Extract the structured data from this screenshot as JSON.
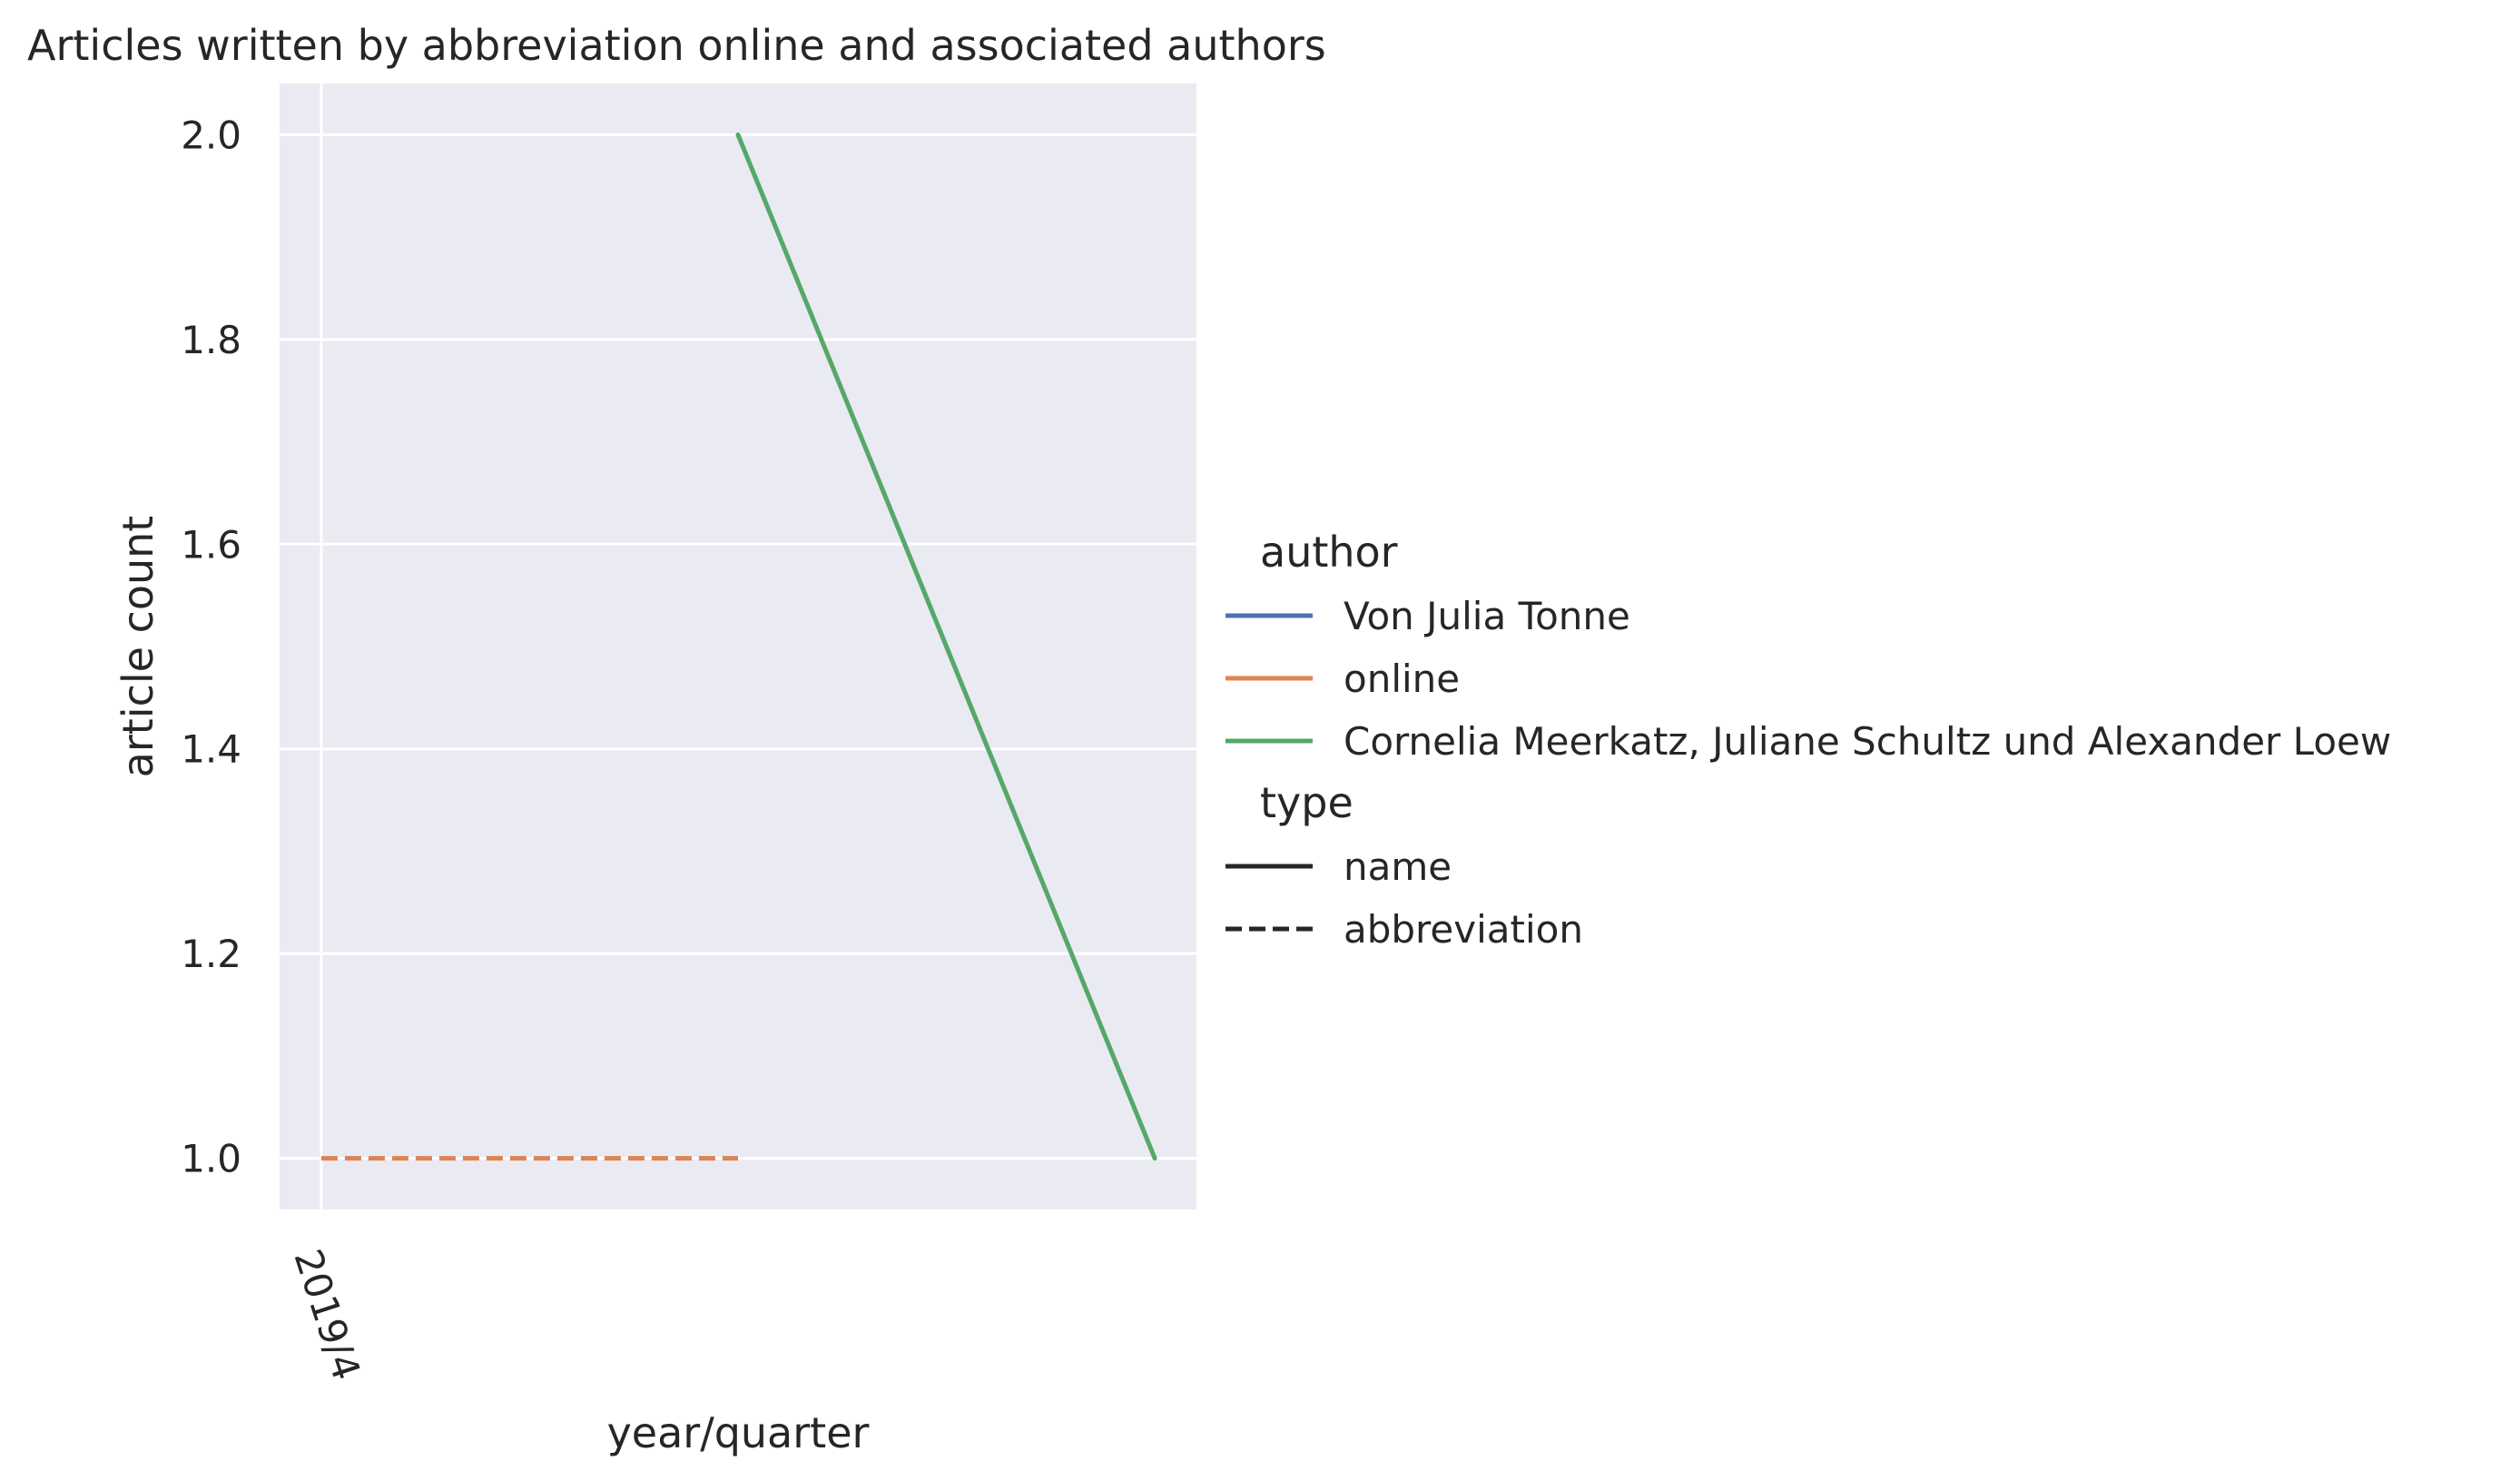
{
  "chart_data": {
    "type": "line",
    "title": "Articles written by abbreviation online and associated authors",
    "xlabel": "year/quarter",
    "ylabel": "article count",
    "x_tick_labels": [
      "2019/4"
    ],
    "x_positions_note": "",
    "ylim": [
      0.95,
      2.05
    ],
    "yticks": [
      "1.0",
      "1.2",
      "1.4",
      "1.6",
      "1.8",
      "2.0"
    ],
    "grid": true,
    "legend_placement": "right",
    "legend": {
      "author_heading": "author",
      "authors": [
        {
          "name": "Von Julia Tonne",
          "color": "#4c72b0"
        },
        {
          "name": "online",
          "color": "#dd8452"
        },
        {
          "name": "Cornelia Meerkatz, Juliane Schultz und Alexander Loew",
          "color": "#55a868"
        }
      ],
      "type_heading": "type",
      "types": [
        {
          "name": "name",
          "style": "solid"
        },
        {
          "name": "abbreviation",
          "style": "dashed"
        }
      ]
    },
    "series": [
      {
        "name": "Von Julia Tonne",
        "type": "name",
        "color": "#4c72b0",
        "points": []
      },
      {
        "name": "online",
        "type": "abbreviation",
        "color": "#dd8452",
        "points": [
          [
            0,
            1.0
          ],
          [
            1,
            1.0
          ]
        ]
      },
      {
        "name": "Cornelia Meerkatz, Juliane Schultz und Alexander Loew",
        "type": "name",
        "color": "#55a868",
        "points": [
          [
            1,
            2.0
          ],
          [
            2,
            1.0
          ]
        ]
      }
    ],
    "xlim": [
      -0.1,
      2.1
    ]
  }
}
